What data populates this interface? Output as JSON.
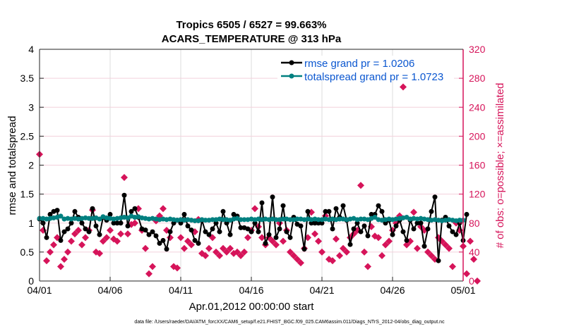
{
  "chart_data": {
    "type": "line",
    "title": "Tropics 6505 / 6527 = 99.663%",
    "subtitle": "ACARS_TEMPERATURE @ 313 hPa",
    "xlabel": "Apr.01,2012 00:00:00 start",
    "ylabel": "rmse and totalspread",
    "ylabel_right": "# of obs: o=possible; ×=assimilated",
    "x_ticks": [
      "04/01",
      "04/06",
      "04/11",
      "04/16",
      "04/21",
      "04/26",
      "05/01"
    ],
    "xlim_days": [
      0,
      30
    ],
    "x_step_days": 0.25,
    "ylim": [
      0,
      4
    ],
    "y_ticks": [
      "0",
      "0.5",
      "1",
      "1.5",
      "2",
      "2.5",
      "3",
      "3.5",
      "4"
    ],
    "ylim_right": [
      0,
      320
    ],
    "y_ticks_right": [
      "0",
      "40",
      "80",
      "120",
      "160",
      "200",
      "240",
      "280",
      "320"
    ],
    "grid": true,
    "legend_position": "top-right",
    "colors": {
      "rmse": "#000000",
      "totalspread": "#008080",
      "obs": "#d6145a",
      "axis_right": "#d6145a"
    },
    "series": [
      {
        "name": "rmse grand pr = 1.0206",
        "axis": "left",
        "values": [
          1.07,
          1.0,
          0.75,
          1.15,
          1.2,
          1.22,
          0.7,
          0.85,
          0.9,
          1.0,
          1.2,
          1.1,
          1.0,
          0.9,
          0.85,
          1.25,
          0.95,
          0.8,
          1.1,
          1.05,
          1.15,
          1.0,
          1.0,
          1.0,
          1.48,
          0.95,
          1.2,
          1.25,
          1.1,
          0.9,
          0.88,
          0.8,
          0.85,
          0.78,
          0.65,
          0.7,
          0.55,
          0.85,
          1.0,
          1.05,
          1.0,
          1.15,
          0.95,
          0.88,
          0.7,
          0.65,
          1.05,
          0.85,
          0.8,
          0.9,
          1.0,
          0.85,
          1.2,
          1.0,
          0.8,
          1.15,
          1.12,
          0.92,
          0.92,
          0.9,
          0.85,
          1.0,
          0.85,
          1.35,
          0.65,
          0.8,
          1.45,
          0.75,
          0.9,
          1.3,
          0.85,
          0.75,
          1.1,
          0.98,
          0.95,
          0.55,
          1.2,
          1.0,
          1.0,
          1.0,
          1.0,
          1.2,
          1.2,
          0.9,
          1.25,
          1.1,
          1.3,
          1.05,
          0.63,
          0.9,
          1.0,
          0.85,
          0.95,
          0.78,
          1.15,
          1.15,
          1.3,
          1.2,
          1.0,
          1.05,
          0.8,
          0.95,
          1.05,
          0.85,
          0.7,
          1.05,
          0.9,
          1.0,
          1.0,
          0.6,
          0.9,
          1.2,
          1.45,
          0.35,
          1.05,
          1.1,
          0.95,
          0.85,
          0.8,
          1.0,
          0.7,
          1.15
        ]
      },
      {
        "name": "totalspread grand pr = 1.0723",
        "axis": "left",
        "values": [
          1.08,
          1.08,
          1.07,
          1.08,
          1.09,
          1.1,
          1.12,
          1.07,
          1.08,
          1.07,
          1.08,
          1.07,
          1.08,
          1.09,
          1.08,
          1.08,
          1.09,
          1.07,
          1.11,
          1.09,
          1.08,
          1.07,
          1.08,
          1.09,
          1.1,
          1.09,
          1.12,
          1.1,
          1.11,
          1.09,
          1.08,
          1.07,
          1.08,
          1.07,
          1.06,
          1.07,
          1.06,
          1.07,
          1.06,
          1.05,
          1.06,
          1.05,
          1.06,
          1.05,
          1.04,
          1.04,
          1.06,
          1.05,
          1.05,
          1.06,
          1.06,
          1.07,
          1.06,
          1.06,
          1.05,
          1.07,
          1.08,
          1.06,
          1.06,
          1.06,
          1.07,
          1.06,
          1.07,
          1.06,
          1.07,
          1.06,
          1.07,
          1.06,
          1.06,
          1.07,
          1.07,
          1.06,
          1.06,
          1.07,
          1.07,
          1.06,
          1.07,
          1.06,
          1.07,
          1.06,
          1.06,
          1.07,
          1.06,
          1.07,
          1.06,
          1.07,
          1.07,
          1.06,
          1.07,
          1.08,
          1.06,
          1.07,
          1.07,
          1.06,
          1.08,
          1.1,
          1.06,
          1.05,
          1.06,
          1.07,
          1.06,
          1.07,
          1.08,
          1.09,
          1.1,
          1.07,
          1.08,
          1.07,
          1.08,
          1.07,
          1.06,
          1.05,
          1.06,
          1.05,
          1.04,
          1.05,
          1.06,
          1.05,
          1.04,
          1.05,
          1.05
        ]
      },
      {
        "name": "# of obs",
        "axis": "right",
        "marker": "diamond",
        "values": [
          175,
          70,
          28,
          40,
          50,
          60,
          20,
          30,
          40,
          55,
          65,
          70,
          50,
          60,
          70,
          98,
          40,
          38,
          55,
          60,
          70,
          58,
          55,
          65,
          143,
          65,
          78,
          80,
          100,
          70,
          45,
          10,
          20,
          83,
          90,
          100,
          70,
          60,
          20,
          18,
          60,
          45,
          55,
          50,
          68,
          85,
          38,
          35,
          45,
          60,
          40,
          35,
          45,
          40,
          45,
          38,
          40,
          35,
          40,
          60,
          70,
          100,
          75,
          60,
          50,
          60,
          55,
          50,
          80,
          55,
          70,
          40,
          35,
          30,
          25,
          45,
          60,
          95,
          65,
          55,
          40,
          90,
          30,
          28,
          58,
          35,
          45,
          40,
          60,
          65,
          70,
          132,
          40,
          20,
          75,
          62,
          60,
          35,
          50,
          55,
          70,
          80,
          90,
          268,
          50,
          55,
          95,
          45,
          75,
          70,
          40,
          35,
          30,
          60,
          55,
          50,
          45,
          20,
          80,
          70,
          48,
          10,
          55,
          30,
          0
        ]
      }
    ],
    "footer": "data file: /Users/raeder/DAI/ATM_forcXX/CAM6_setup/f.e21.FHIST_BGC.f09_025.CAM6assim.011/Diags_NTrS_2012-04/obs_diag_output.nc"
  }
}
